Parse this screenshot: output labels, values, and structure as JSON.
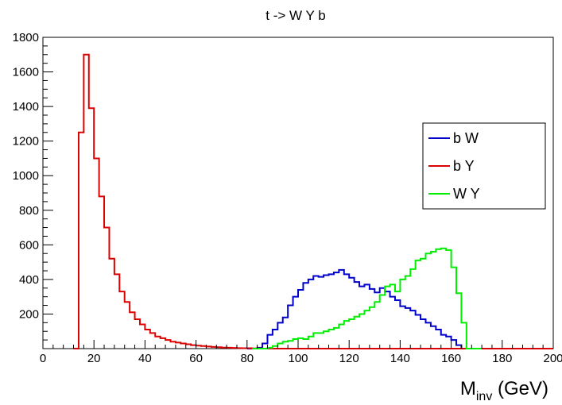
{
  "chart_data": {
    "type": "line",
    "title": "t -> W Y b",
    "xlabel_main": "M",
    "xlabel_sub": "inv",
    "xlabel_unit": " (GeV)",
    "ylabel": "",
    "xlim": [
      0,
      200
    ],
    "ylim": [
      0,
      1800
    ],
    "x_ticks": [
      0,
      20,
      40,
      60,
      80,
      100,
      120,
      140,
      160,
      180,
      200
    ],
    "y_ticks": [
      200,
      400,
      600,
      800,
      1000,
      1200,
      1400,
      1600,
      1800
    ],
    "bin_width": 2,
    "grid": false,
    "legend_position": "right",
    "series": [
      {
        "name": "b W",
        "color": "#0000cc",
        "x": [
          80,
          82,
          84,
          86,
          88,
          90,
          92,
          94,
          96,
          98,
          100,
          102,
          104,
          106,
          108,
          110,
          112,
          114,
          116,
          118,
          120,
          122,
          124,
          126,
          128,
          130,
          132,
          134,
          136,
          138,
          140,
          142,
          144,
          146,
          148,
          150,
          152,
          154,
          156,
          158,
          160,
          162,
          164,
          166
        ],
        "values": [
          0,
          0,
          5,
          30,
          80,
          110,
          150,
          180,
          250,
          300,
          340,
          380,
          400,
          420,
          415,
          425,
          430,
          440,
          455,
          430,
          410,
          385,
          360,
          370,
          345,
          325,
          350,
          330,
          300,
          280,
          245,
          235,
          220,
          195,
          170,
          150,
          130,
          110,
          80,
          70,
          50,
          20,
          0,
          0
        ]
      },
      {
        "name": "b Y",
        "color": "#dd0000",
        "x": [
          12,
          14,
          16,
          18,
          20,
          22,
          24,
          26,
          28,
          30,
          32,
          34,
          36,
          38,
          40,
          42,
          44,
          46,
          48,
          50,
          52,
          54,
          56,
          58,
          60,
          62,
          64,
          66,
          68,
          70,
          72,
          74,
          76,
          78,
          80,
          82,
          84,
          86,
          88,
          90,
          92,
          94,
          96,
          98,
          100,
          102,
          104,
          106,
          108,
          110,
          112,
          114,
          116,
          118,
          120,
          122,
          124,
          126,
          128,
          130,
          132,
          134,
          136,
          138,
          140,
          142,
          144,
          146,
          148,
          150,
          152,
          154,
          156,
          158,
          160,
          162,
          164,
          166,
          168,
          170,
          172,
          174,
          176,
          178,
          180,
          182,
          184,
          186,
          188,
          190,
          192,
          194,
          196,
          198
        ],
        "values": [
          0,
          1250,
          1700,
          1390,
          1100,
          880,
          700,
          520,
          430,
          330,
          270,
          210,
          170,
          140,
          110,
          90,
          70,
          60,
          50,
          40,
          35,
          30,
          25,
          20,
          17,
          15,
          12,
          10,
          8,
          6,
          5,
          4,
          3,
          2,
          2,
          1,
          1,
          0,
          0,
          0,
          0,
          0,
          0,
          0,
          0,
          0,
          0,
          0,
          0,
          0,
          0,
          0,
          0,
          0,
          0,
          0,
          0,
          0,
          0,
          0,
          0,
          0,
          0,
          0,
          0,
          0,
          0,
          0,
          0,
          0,
          0,
          0,
          0,
          0,
          0,
          0,
          0,
          0,
          0,
          0,
          0,
          0,
          0,
          0,
          0,
          0,
          0,
          0,
          0,
          0,
          0,
          0,
          0,
          0
        ]
      },
      {
        "name": "W Y",
        "color": "#00ee00",
        "x": [
          82,
          84,
          86,
          88,
          90,
          92,
          94,
          96,
          98,
          100,
          102,
          104,
          106,
          108,
          110,
          112,
          114,
          116,
          118,
          120,
          122,
          124,
          126,
          128,
          130,
          132,
          134,
          136,
          138,
          140,
          142,
          144,
          146,
          148,
          150,
          152,
          154,
          156,
          158,
          160,
          162,
          164,
          166,
          168,
          170
        ],
        "values": [
          0,
          0,
          0,
          5,
          15,
          30,
          40,
          45,
          55,
          60,
          55,
          70,
          90,
          90,
          100,
          110,
          120,
          140,
          160,
          170,
          185,
          200,
          220,
          240,
          270,
          310,
          360,
          370,
          330,
          400,
          420,
          460,
          510,
          520,
          550,
          560,
          575,
          580,
          570,
          470,
          320,
          150,
          0,
          0,
          0
        ]
      }
    ]
  }
}
